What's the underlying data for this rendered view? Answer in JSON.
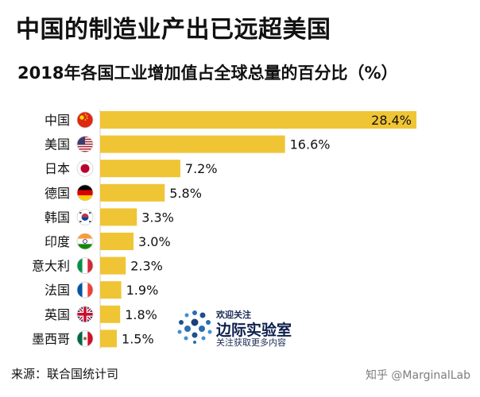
{
  "header": {
    "title": "中国的制造业产出已远超美国",
    "subtitle": "2018年各国工业增加值占全球总量的百分比（%）"
  },
  "chart_data": {
    "type": "bar",
    "orientation": "horizontal",
    "categories": [
      "中国",
      "美国",
      "日本",
      "德国",
      "韩国",
      "印度",
      "意大利",
      "法国",
      "英国",
      "墨西哥"
    ],
    "values": [
      28.4,
      16.6,
      7.2,
      5.8,
      3.3,
      3.0,
      2.3,
      1.9,
      1.8,
      1.5
    ],
    "value_labels": [
      "28.4%",
      "16.6%",
      "7.2%",
      "5.8%",
      "3.3%",
      "3.0%",
      "2.3%",
      "1.9%",
      "1.8%",
      "1.5%"
    ],
    "flags": [
      "china-flag-icon",
      "usa-flag-icon",
      "japan-flag-icon",
      "germany-flag-icon",
      "south-korea-flag-icon",
      "india-flag-icon",
      "italy-flag-icon",
      "france-flag-icon",
      "uk-flag-icon",
      "mexico-flag-icon"
    ],
    "bar_color": "#efc535",
    "grid": false,
    "legend": "none"
  },
  "footer": {
    "source": "来源：联合国统计司",
    "watermark": "知乎 @MarginalLab"
  },
  "promo": {
    "line1": "欢迎关注",
    "line2": "边际实验室",
    "line3": "关注获取更多内容"
  }
}
